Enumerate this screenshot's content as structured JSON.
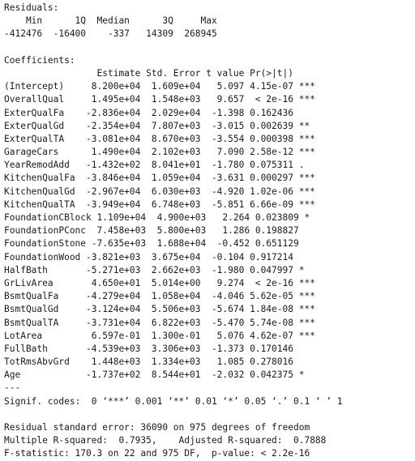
{
  "console": {
    "lines": [
      "Residuals:",
      "    Min      1Q  Median      3Q     Max ",
      "-412476  -16400    -337   14309  268945 ",
      "",
      "Coefficients:",
      "                 Estimate Std. Error t value Pr(>|t|)    ",
      "(Intercept)     8.200e+04  1.609e+04   5.097 4.15e-07 ***",
      "OverallQual     1.495e+04  1.548e+03   9.657  < 2e-16 ***",
      "ExterQualFa    -2.836e+04  2.029e+04  -1.398 0.162436    ",
      "ExterQualGd    -2.354e+04  7.807e+03  -3.015 0.002639 ** ",
      "ExterQualTA    -3.081e+04  8.670e+03  -3.554 0.000398 ***",
      "GarageCars      1.490e+04  2.102e+03   7.090 2.58e-12 ***",
      "YearRemodAdd   -1.432e+02  8.041e+01  -1.780 0.075311 .  ",
      "KitchenQualFa  -3.846e+04  1.059e+04  -3.631 0.000297 ***",
      "KitchenQualGd  -2.967e+04  6.030e+03  -4.920 1.02e-06 ***",
      "KitchenQualTA  -3.949e+04  6.748e+03  -5.851 6.66e-09 ***",
      "FoundationCBlock 1.109e+04  4.900e+03   2.264 0.023809 *  ",
      "FoundationPConc  7.458e+03  5.800e+03   1.286 0.198827    ",
      "FoundationStone -7.635e+03  1.688e+04  -0.452 0.651129    ",
      "FoundationWood -3.821e+03  3.675e+04  -0.104 0.917214    ",
      "HalfBath       -5.271e+03  2.662e+03  -1.980 0.047997 *  ",
      "GrLivArea       4.650e+01  5.014e+00   9.274  < 2e-16 ***",
      "BsmtQualFa     -4.279e+04  1.058e+04  -4.046 5.62e-05 ***",
      "BsmtQualGd     -3.124e+04  5.506e+03  -5.674 1.84e-08 ***",
      "BsmtQualTA     -3.731e+04  6.822e+03  -5.470 5.74e-08 ***",
      "LotArea         6.597e-01  1.300e-01   5.076 4.62e-07 ***",
      "FullBath       -4.539e+03  3.306e+03  -1.373 0.170146    ",
      "TotRmsAbvGrd    1.448e+03  1.334e+03   1.085 0.278016    ",
      "Age            -1.737e+02  8.544e+01  -2.032 0.042375 *  ",
      "---",
      "Signif. codes:  0 ‘***’ 0.001 ‘**’ 0.01 ‘*’ 0.05 ‘.’ 0.1 ‘ ’ 1",
      "",
      "Residual standard error: 36090 on 975 degrees of freedom",
      "Multiple R-squared:  0.7935,\tAdjusted R-squared:  0.7888 ",
      "F-statistic: 170.3 on 22 and 975 DF,  p-value: < 2.2e-16"
    ]
  }
}
